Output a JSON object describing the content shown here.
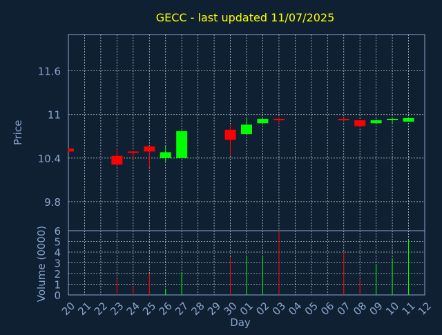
{
  "colors": {
    "background": "#0f2033",
    "up": "#00ff00",
    "down": "#ff0000",
    "title": "#ffff00",
    "axis": "#8aa6cc",
    "grid": "#ffffff"
  },
  "chart_data": {
    "type": "candlestick",
    "title": "GECC - last updated 11/07/2025",
    "xlabel": "Day",
    "ylabel": "Price",
    "volume_ylabel": "Volume (0000)",
    "grid": true,
    "x_ticks": [
      "20",
      "21",
      "22",
      "23",
      "24",
      "25",
      "26",
      "27",
      "28",
      "29",
      "30",
      "01",
      "02",
      "03",
      "04",
      "05",
      "06",
      "07",
      "08",
      "09",
      "10",
      "11",
      "12"
    ],
    "y_ticks": [
      "9.8",
      "10.4",
      "11",
      "11.6"
    ],
    "ylim": [
      9.4,
      12.1
    ],
    "volume_ticks": [
      "0",
      "1",
      "2",
      "3",
      "4",
      "5",
      "6"
    ],
    "volume_ylim": [
      0,
      6
    ],
    "candles": [
      {
        "day": "20",
        "open": 10.53,
        "high": 10.53,
        "low": 10.49,
        "close": 10.49,
        "volume": 0
      },
      {
        "day": "23",
        "open": 10.43,
        "high": 10.54,
        "low": 10.3,
        "close": 10.31,
        "volume": 1.5
      },
      {
        "day": "24",
        "open": 10.49,
        "high": 10.5,
        "low": 10.38,
        "close": 10.48,
        "volume": 0.8
      },
      {
        "day": "25",
        "open": 10.56,
        "high": 10.57,
        "low": 10.27,
        "close": 10.49,
        "volume": 2.0
      },
      {
        "day": "26",
        "open": 10.4,
        "high": 10.56,
        "low": 10.35,
        "close": 10.48,
        "volume": 0.5
      },
      {
        "day": "27",
        "open": 10.4,
        "high": 10.78,
        "low": 10.4,
        "close": 10.77,
        "volume": 2.1
      },
      {
        "day": "30",
        "open": 10.79,
        "high": 10.86,
        "low": 10.43,
        "close": 10.65,
        "volume": 3.5
      },
      {
        "day": "01",
        "open": 10.73,
        "high": 10.95,
        "low": 10.73,
        "close": 10.86,
        "volume": 3.6
      },
      {
        "day": "02",
        "open": 10.88,
        "high": 10.94,
        "low": 10.86,
        "close": 10.94,
        "volume": 3.7
      },
      {
        "day": "03",
        "open": 10.94,
        "high": 10.96,
        "low": 10.87,
        "close": 10.92,
        "volume": 6.0
      },
      {
        "day": "07",
        "open": 10.94,
        "high": 10.95,
        "low": 10.91,
        "close": 10.92,
        "volume": 4.0
      },
      {
        "day": "08",
        "open": 10.92,
        "high": 10.92,
        "low": 10.83,
        "close": 10.84,
        "volume": 1.5
      },
      {
        "day": "09",
        "open": 10.88,
        "high": 10.93,
        "low": 10.87,
        "close": 10.92,
        "volume": 2.9
      },
      {
        "day": "10",
        "open": 10.93,
        "high": 10.94,
        "low": 10.87,
        "close": 10.94,
        "volume": 3.4
      },
      {
        "day": "11",
        "open": 10.9,
        "high": 10.96,
        "low": 10.9,
        "close": 10.95,
        "volume": 5.1
      }
    ]
  }
}
